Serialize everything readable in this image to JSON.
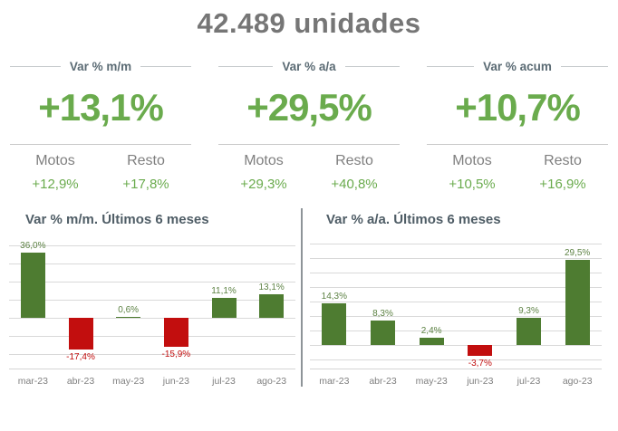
{
  "title": "42.489 unidades",
  "colors": {
    "title_gray": "#767676",
    "kpi_green": "#6aab4d",
    "header_text": "#5b6b74",
    "label_gray": "#7f7f7f",
    "bar_green": "#4e7c31",
    "bar_red": "#c20e0e",
    "gridline": "#d9d9d9",
    "divider_gray": "#8e9498"
  },
  "kpis": [
    {
      "header": "Var % m/m",
      "value": "+13,1%",
      "split": [
        {
          "label": "Motos",
          "value": "+12,9%"
        },
        {
          "label": "Resto",
          "value": "+17,8%"
        }
      ]
    },
    {
      "header": "Var % a/a",
      "value": "+29,5%",
      "split": [
        {
          "label": "Motos",
          "value": "+29,3%"
        },
        {
          "label": "Resto",
          "value": "+40,8%"
        }
      ]
    },
    {
      "header": "Var % acum",
      "value": "+10,7%",
      "split": [
        {
          "label": "Motos",
          "value": "+10,5%"
        },
        {
          "label": "Resto",
          "value": "+16,9%"
        }
      ]
    }
  ],
  "chart_data": [
    {
      "type": "bar",
      "title": "Var % m/m. Últimos 6 meses",
      "categories": [
        "mar-23",
        "abr-23",
        "may-23",
        "jun-23",
        "jul-23",
        "ago-23"
      ],
      "values": [
        36.0,
        -17.4,
        0.6,
        -15.9,
        11.1,
        13.1
      ],
      "value_labels": [
        "36,0%",
        "-17,4%",
        "0,6%",
        "-15,9%",
        "11,1%",
        "13,1%"
      ],
      "ylim": [
        -20,
        40
      ],
      "grid_step": 10,
      "grid": true,
      "legend": false,
      "positive_color": "#4e7c31",
      "negative_color": "#c20e0e"
    },
    {
      "type": "bar",
      "title": "Var % a/a. Últimos 6 meses",
      "categories": [
        "mar-23",
        "abr-23",
        "may-23",
        "jun-23",
        "jul-23",
        "ago-23"
      ],
      "values": [
        14.3,
        8.3,
        2.4,
        -3.7,
        9.3,
        29.5
      ],
      "value_labels": [
        "14,3%",
        "8,3%",
        "2,4%",
        "-3,7%",
        "9,3%",
        "29,5%"
      ],
      "ylim": [
        -5,
        35
      ],
      "grid_step": 5,
      "grid": true,
      "legend": false,
      "positive_color": "#4e7c31",
      "negative_color": "#c20e0e"
    }
  ]
}
